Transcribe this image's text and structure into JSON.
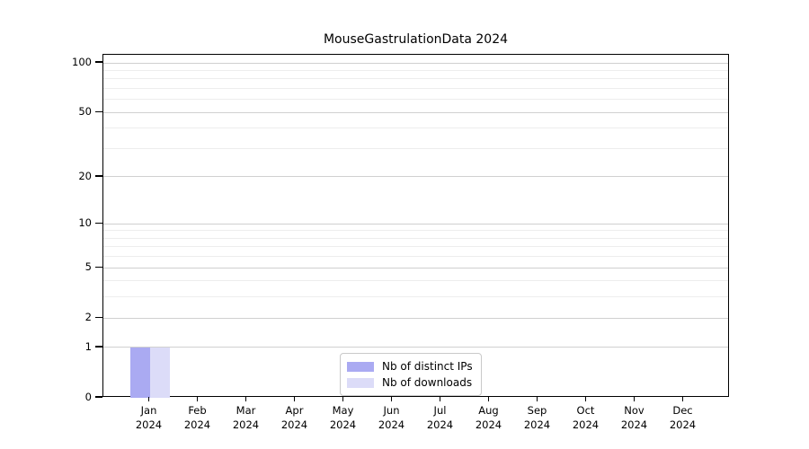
{
  "title": "MouseGastrulationData 2024",
  "chart_data": {
    "type": "bar",
    "title": "MouseGastrulationData 2024",
    "categories": [
      "Jan 2024",
      "Feb 2024",
      "Mar 2024",
      "Apr 2024",
      "May 2024",
      "Jun 2024",
      "Jul 2024",
      "Aug 2024",
      "Sep 2024",
      "Oct 2024",
      "Nov 2024",
      "Dec 2024"
    ],
    "series": [
      {
        "name": "Nb of distinct IPs",
        "color": "#aaaaf2",
        "values": [
          1,
          0,
          0,
          0,
          0,
          0,
          0,
          0,
          0,
          0,
          0,
          0
        ]
      },
      {
        "name": "Nb of downloads",
        "color": "#dcdcf8",
        "values": [
          1,
          0,
          0,
          0,
          0,
          0,
          0,
          0,
          0,
          0,
          0,
          0
        ]
      }
    ],
    "xlabel": "",
    "ylabel": "",
    "yscale": "log1p",
    "ylim": [
      0,
      112
    ],
    "y_major_ticks": [
      0,
      1,
      2,
      5,
      10,
      20,
      50,
      100
    ],
    "y_minor_gridlines": [
      3,
      4,
      6,
      7,
      8,
      9,
      30,
      40,
      60,
      70,
      80,
      90
    ],
    "grid": "horizontal-only",
    "legend_position": "bottom-center-inside"
  },
  "colors": {
    "grid_major": "#d0d0d0",
    "grid_minor": "#ededed",
    "spine": "#000000",
    "background": "#ffffff",
    "legend_border": "#c9c9c9"
  }
}
